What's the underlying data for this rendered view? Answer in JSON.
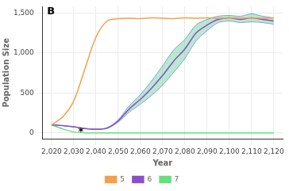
{
  "chart_data": {
    "type": "line",
    "x_label": "Year",
    "y_label": "Population Size",
    "x": [
      2020,
      2025,
      2030,
      2035,
      2040,
      2045,
      2050,
      2055,
      2060,
      2065,
      2070,
      2075,
      2080,
      2085,
      2090,
      2095,
      2100,
      2105,
      2110,
      2115,
      2120
    ],
    "series": [
      {
        "name": "5",
        "color": "#f5a04a",
        "values": [
          100,
          200,
          400,
          800,
          1200,
          1400,
          1430,
          1435,
          1430,
          1440,
          1435,
          1430,
          1440,
          1435,
          1440,
          1435,
          1440,
          1435,
          1440,
          1435,
          1440
        ]
      },
      {
        "name": "6",
        "color": "#8a4fc8",
        "values": [
          100,
          90,
          75,
          55,
          45,
          60,
          150,
          300,
          420,
          560,
          720,
          900,
          1050,
          1250,
          1350,
          1420,
          1440,
          1420,
          1440,
          1420,
          1400
        ],
        "lower": [
          100,
          90,
          75,
          55,
          45,
          55,
          135,
          260,
          360,
          470,
          600,
          760,
          930,
          1150,
          1280,
          1380,
          1400,
          1380,
          1390,
          1380,
          1360
        ],
        "upper": [
          100,
          90,
          75,
          55,
          45,
          65,
          165,
          340,
          480,
          650,
          840,
          1040,
          1170,
          1350,
          1420,
          1460,
          1470,
          1460,
          1490,
          1460,
          1440
        ]
      },
      {
        "name": "7",
        "color": "#66e07a",
        "values": [
          100,
          50,
          10,
          0,
          0,
          0,
          0,
          0,
          0,
          0,
          0,
          0,
          0,
          0,
          0,
          0,
          0,
          0,
          0,
          0,
          0
        ]
      }
    ],
    "annotations": [
      {
        "text": "B",
        "x": 2018,
        "y": 1520
      },
      {
        "text": "*",
        "x": 2032,
        "y": 10
      }
    ],
    "xlim": [
      2016,
      2124
    ],
    "ylim": [
      -75,
      1580
    ],
    "xticks": [
      2020,
      2030,
      2040,
      2050,
      2060,
      2070,
      2080,
      2090,
      2100,
      2110,
      2120
    ],
    "yticks": [
      0,
      500,
      1000,
      1500
    ],
    "grid": true,
    "legend": "bottom"
  }
}
